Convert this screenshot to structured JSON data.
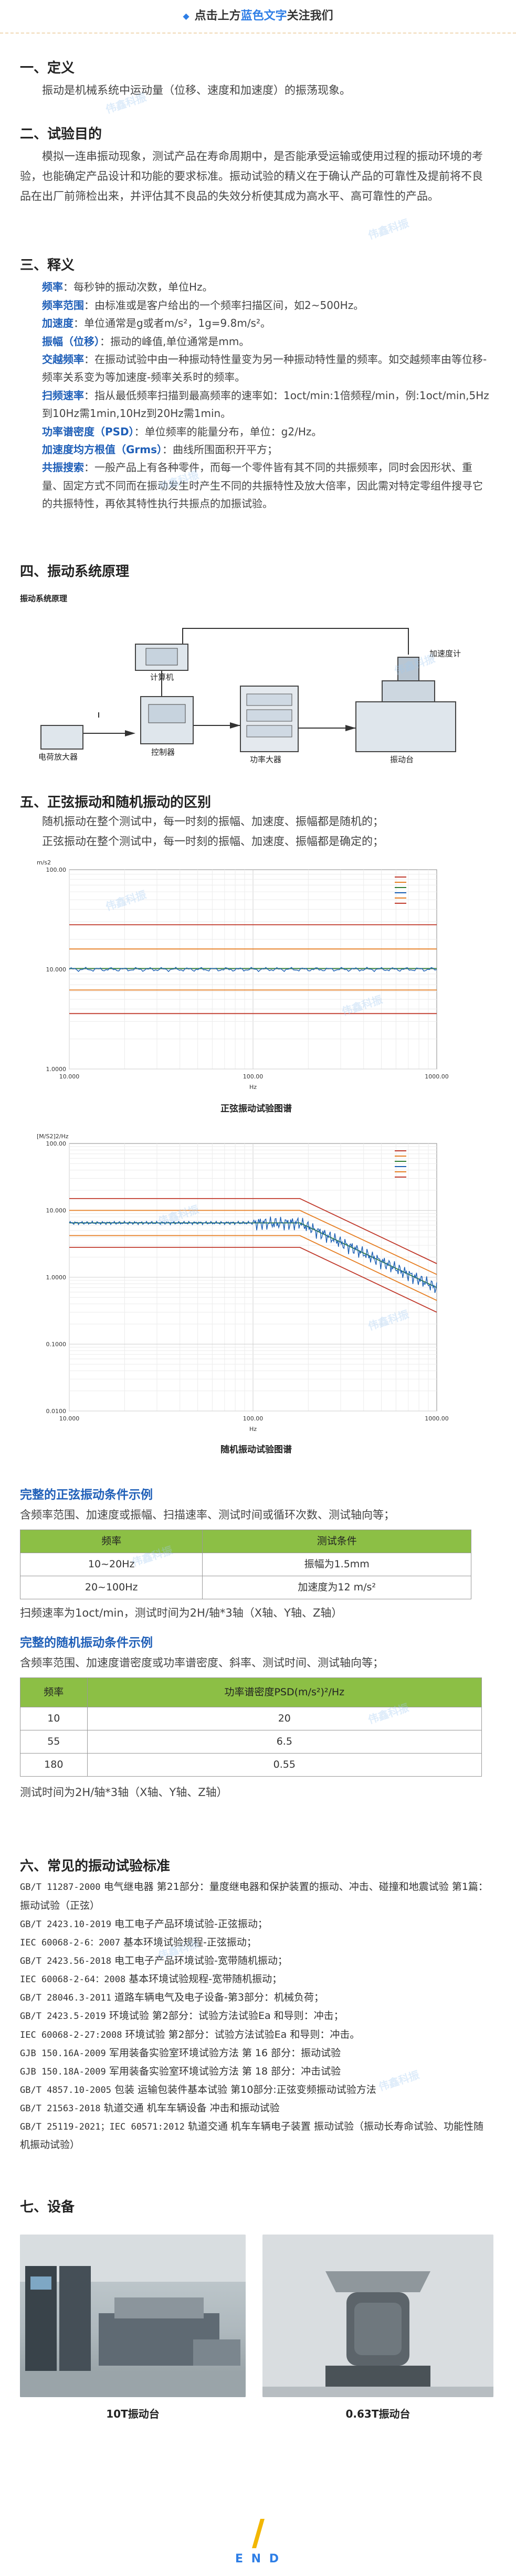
{
  "header": {
    "prefix": "点击上方",
    "link": "蓝色文字",
    "suffix": "关注我们"
  },
  "watermark": "伟鑫科振",
  "s1": {
    "title": "一、定义",
    "body": "振动是机械系统中运动量（位移、速度和加速度）的振荡现象。"
  },
  "s2": {
    "title": "二、试验目的",
    "body": "模拟一连串振动现象，测试产品在寿命周期中，是否能承受运输或使用过程的振动环境的考验，也能确定产品设计和功能的要求标准。振动试验的精义在于确认产品的可靠性及提前将不良品在出厂前筛检出来，并评估其不良品的失效分析使其成为高水平、高可靠性的产品。"
  },
  "s3": {
    "title": "三、释义",
    "items": [
      {
        "term": "频率",
        "text": "：每秒钟的振动次数，单位Hz。"
      },
      {
        "term": "频率范围",
        "text": "：由标准或是客户给出的一个频率扫描区间，如2~500Hz。"
      },
      {
        "term": "加速度",
        "text": "：单位通常是g或者m/s²，1g=9.8m/s²。"
      },
      {
        "term": "振幅（位移）",
        "text": "：振动的峰值,单位通常是mm。"
      },
      {
        "term": "交越频率",
        "text": "：在振动试验中由一种振动特性量变为另一种振动特性量的频率。如交越频率由等位移-频率关系变为等加速度-频率关系时的频率。"
      },
      {
        "term": "扫频速率",
        "text": "：指从最低频率扫描到最高频率的速率如：1oct/min:1倍频程/min，例:1oct/min,5Hz到10Hz需1min,10Hz到20Hz需1min。"
      },
      {
        "term": "功率谱密度（PSD）",
        "text": "：单位频率的能量分布，单位：g2/Hz。"
      },
      {
        "term": "加速度均方根值（Grms）",
        "text": "：曲线所围面积开平方；"
      },
      {
        "term": "共振搜索",
        "text": "：一般产品上有各种零件，而每一个零件皆有其不同的共振频率，同时会因形状、重量、固定方式不同而在振动发生时产生不同的共振特性及放大倍率，因此需对特定零组件搜寻它的共振特性，再依其特性执行共振点的加振试验。"
      }
    ]
  },
  "s4": {
    "title": "四、振动系统原理",
    "diagram_title": "振动系统原理",
    "labels": {
      "computer": "计算机",
      "amplifier": "电荷放大器",
      "controller": "控制器",
      "power_amp": "功率大器",
      "shaker": "振动台",
      "accel": "加速度计"
    }
  },
  "s5": {
    "title": "五、正弦振动和随机振动的区别",
    "p1": "随机振动在整个测试中，每一时刻的振幅、加速度、振幅都是随机的；",
    "p2": "正弦振动在整个测试中，每一时刻的振幅、加速度、振幅都是确定的；",
    "sine_caption": "正弦振动试验图谱",
    "random_caption": "随机振动试验图谱"
  },
  "chart_data": [
    {
      "type": "line",
      "title": "正弦振动试验图谱",
      "ylabel": "m/s2",
      "xlabel": "Hz",
      "x_scale": "log",
      "y_scale": "log",
      "xlim": [
        10,
        1000
      ],
      "ylim": [
        1,
        100
      ],
      "x_ticks": [
        "10.000",
        "100.00",
        "1000.00"
      ],
      "y_ticks": [
        "100.00",
        "10.000",
        "1.0000"
      ],
      "series": [
        {
          "color": "#c0392b",
          "x": [
            10,
            1000
          ],
          "y": [
            28,
            28
          ]
        },
        {
          "color": "#e67e22",
          "x": [
            10,
            1000
          ],
          "y": [
            16,
            16
          ]
        },
        {
          "color": "#2e7d32",
          "x": [
            10,
            1000
          ],
          "y": [
            10.2,
            10.2
          ]
        },
        {
          "color": "#1a5fb4",
          "x": [
            10,
            100,
            200,
            400,
            1000
          ],
          "y": [
            10,
            9.9,
            10.1,
            9.8,
            10
          ]
        },
        {
          "color": "#e67e22",
          "x": [
            10,
            1000
          ],
          "y": [
            6.2,
            6.2
          ]
        },
        {
          "color": "#c0392b",
          "x": [
            10,
            1000
          ],
          "y": [
            3.6,
            3.6
          ]
        }
      ],
      "legend_placement": "top-right",
      "grid": true
    },
    {
      "type": "line",
      "title": "随机振动试验图谱",
      "ylabel": "[M/S2]2/Hz",
      "xlabel": "Hz",
      "x_scale": "log",
      "y_scale": "log",
      "xlim": [
        10,
        1000
      ],
      "ylim": [
        0.01,
        100
      ],
      "x_ticks": [
        "10.000",
        "100.00",
        "1000.00"
      ],
      "y_ticks": [
        "100.00",
        "10.000",
        "1.0000",
        "0.1000",
        "0.0100"
      ],
      "series": [
        {
          "color": "#c0392b",
          "x": [
            10,
            180,
            1000
          ],
          "y": [
            15,
            15,
            1.6
          ]
        },
        {
          "color": "#e67e22",
          "x": [
            10,
            180,
            1000
          ],
          "y": [
            10,
            10,
            1.1
          ]
        },
        {
          "color": "#2e7d32",
          "x": [
            10,
            180,
            1000
          ],
          "y": [
            6.5,
            6.5,
            0.7
          ]
        },
        {
          "color": "#1a5fb4",
          "x": [
            10,
            180,
            1000
          ],
          "y": [
            6.5,
            6.5,
            0.7
          ]
        },
        {
          "color": "#e67e22",
          "x": [
            10,
            180,
            1000
          ],
          "y": [
            4.2,
            4.2,
            0.45
          ]
        },
        {
          "color": "#c0392b",
          "x": [
            10,
            180,
            1000
          ],
          "y": [
            2.8,
            2.8,
            0.3
          ]
        }
      ],
      "legend_placement": "top-right",
      "grid": true
    }
  ],
  "sine_example": {
    "title": "完整的正弦振动条件示例",
    "desc": "含频率范围、加速度或振幅、扫描速率、测试时间或循环次数、测试轴向等；",
    "headers": [
      "频率",
      "测试条件"
    ],
    "rows": [
      [
        "10~20Hz",
        "振幅为1.5mm"
      ],
      [
        "20~100Hz",
        "加速度为12 m/s²"
      ]
    ],
    "note": "扫频速率为1oct/min，测试时间为2H/轴*3轴（X轴、Y轴、Z轴）"
  },
  "random_example": {
    "title": "完整的随机振动条件示例",
    "desc": "含频率范围、加速度谱密度或功率谱密度、斜率、测试时间、测试轴向等；",
    "headers": [
      "频率",
      "功率谱密度PSD(m/s²)²/Hz"
    ],
    "rows": [
      [
        "10",
        "20"
      ],
      [
        "55",
        "6.5"
      ],
      [
        "180",
        "0.55"
      ]
    ],
    "note": "测试时间为2H/轴*3轴（X轴、Y轴、Z轴）"
  },
  "s6": {
    "title": "六、常见的振动试验标准",
    "items": [
      {
        "code": "GB/T 11287-2000",
        "text": "电气继电器 第21部分：量度继电器和保护装置的振动、冲击、碰撞和地震试验 第1篇：振动试验（正弦）"
      },
      {
        "code": "GB/T 2423.10-2019",
        "text": "电工电子产品环境试验-正弦振动；"
      },
      {
        "code": "IEC 60068-2-6：2007",
        "text": "基本环境试验规程-正弦振动；"
      },
      {
        "code": "GB/T 2423.56-2018",
        "text": "电工电子产品环境试验-宽带随机振动；"
      },
      {
        "code": "IEC 60068-2-64：2008",
        "text": "基本环境试验规程-宽带随机振动；"
      },
      {
        "code": "GB/T 28046.3-2011",
        "text": "道路车辆电气及电子设备-第3部分：机械负荷；"
      },
      {
        "code": "GB/T 2423.5-2019",
        "text": "环境试验 第2部分：试验方法试验Ea 和导则：冲击；"
      },
      {
        "code": "IEC 60068-2-27:2008",
        "text": "环境试验 第2部分：试验方法试验Ea 和导则：冲击。"
      },
      {
        "code": "GJB 150.16A-2009",
        "text": "军用装备实验室环境试验方法 第 16 部分：振动试验"
      },
      {
        "code": "GJB 150.18A-2009",
        "text": "军用装备实验室环境试验方法 第 18 部分：冲击试验"
      },
      {
        "code": "GB/T 4857.10-2005",
        "text": "包装 运输包装件基本试验 第10部分:正弦变频振动试验方法"
      },
      {
        "code": "GB/T 21563-2018",
        "text": "轨道交通 机车车辆设备 冲击和振动试验"
      },
      {
        "code": "GB/T 25119-2021；IEC 60571:2012",
        "text": "轨道交通 机车车辆电子装置 振动试验（振动长寿命试验、功能性随机振动试验）"
      }
    ]
  },
  "s7": {
    "title": "七、设备",
    "photo1_caption": "10T振动台",
    "photo2_caption": "0.63T振动台"
  },
  "footer": {
    "end": "E N D"
  }
}
